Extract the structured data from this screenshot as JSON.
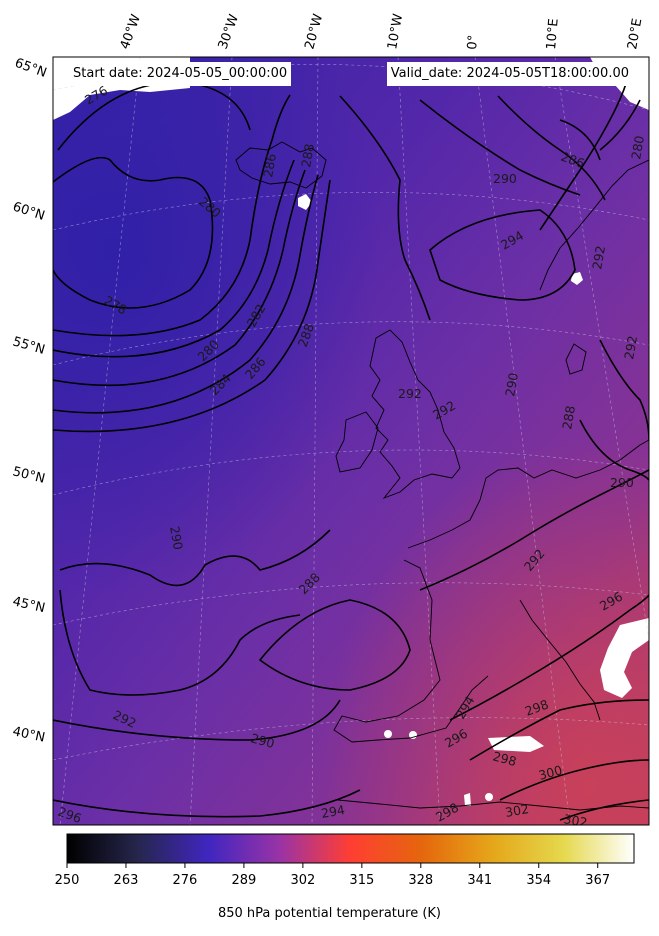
{
  "header": {
    "start_date": "Start date: 2024-05-05_00:00:00",
    "valid_date": "Valid_date: 2024-05-05T18:00:00.00"
  },
  "longitude_labels": [
    "40°W",
    "30°W",
    "20°W",
    "10°W",
    "0°",
    "10°E",
    "20°E"
  ],
  "latitude_labels": [
    "65°N",
    "60°N",
    "55°N",
    "50°N",
    "45°N",
    "40°N"
  ],
  "contour_labels": [
    "276",
    "278",
    "280",
    "280",
    "282",
    "284",
    "286",
    "286",
    "288",
    "288",
    "288",
    "290",
    "290",
    "290",
    "290",
    "290",
    "292",
    "292",
    "292",
    "292",
    "292",
    "294",
    "294",
    "294",
    "296",
    "296",
    "296",
    "298",
    "298",
    "298",
    "300",
    "302",
    "302",
    "286",
    "288",
    "280",
    "292"
  ],
  "colorbar": {
    "ticks": [
      "250",
      "263",
      "276",
      "289",
      "302",
      "315",
      "328",
      "341",
      "354",
      "367"
    ],
    "label": "850 hPa potential temperature (K)",
    "colormap": "CMRmap",
    "vmin": 250,
    "vmax": 375
  },
  "colors": {
    "cold_field": "#3b22a8",
    "mid_field": "#6a30a8",
    "warm_field": "#b53a6a",
    "contour": "#000000"
  }
}
